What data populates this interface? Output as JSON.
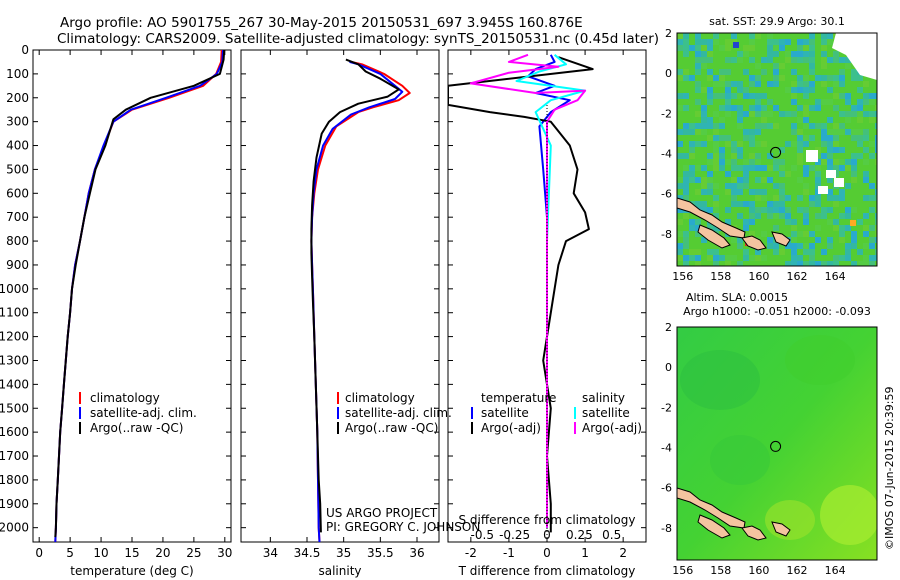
{
  "header": {
    "line1": "Argo profile: AO 5901755_267 30-May-2015 20150531_697 3.945S 160.876E",
    "line2": "Climatology: CARS2009. Satellite-adjusted climatology: synTS_20150531.nc (0.45d later)"
  },
  "credits": {
    "project": "US ARGO PROJECT",
    "pi": "PI: GREGORY C. JOHNSON",
    "imos": "©IMOS 07-Jun-2015 20:39:59"
  },
  "colors": {
    "climatology": "#ff0000",
    "satellite": "#0000ff",
    "argo": "#000000",
    "sat_temp_diff": "#0000ff",
    "sat_sal_diff": "#00ffff",
    "argo_sal_diff": "#ff00ff"
  },
  "chart_data": [
    {
      "type": "line",
      "panel": "temperature",
      "xlabel": "temperature (deg C)",
      "ylabel": "",
      "xlim": [
        -1,
        31
      ],
      "ylim": [
        2060,
        0
      ],
      "x_ticks": [
        0,
        5,
        10,
        15,
        20,
        25,
        30
      ],
      "x_tick_labels": [
        "0",
        "5",
        "10",
        "15",
        "20",
        "25",
        "30"
      ],
      "y_ticks": [
        0,
        100,
        200,
        300,
        400,
        500,
        600,
        700,
        800,
        900,
        1000,
        1100,
        1200,
        1300,
        1400,
        1500,
        1600,
        1700,
        1800,
        1900,
        2000
      ],
      "legend": [
        "climatology",
        "satellite-adj. clim.",
        "Argo(..raw -QC)"
      ],
      "series": [
        {
          "name": "climatology",
          "color": "#ff0000",
          "points": [
            [
              29.5,
              0
            ],
            [
              29.4,
              50
            ],
            [
              28.6,
              100
            ],
            [
              26.5,
              150
            ],
            [
              21,
              200
            ],
            [
              15,
              250
            ],
            [
              12,
              300
            ],
            [
              10.5,
              400
            ],
            [
              9,
              500
            ],
            [
              8,
              600
            ],
            [
              7.3,
              700
            ],
            [
              6.6,
              800
            ],
            [
              5.8,
              900
            ],
            [
              5.3,
              1000
            ],
            [
              5,
              1100
            ],
            [
              4.6,
              1200
            ],
            [
              4.3,
              1300
            ],
            [
              4,
              1400
            ],
            [
              3.7,
              1500
            ],
            [
              3.4,
              1600
            ],
            [
              3.2,
              1700
            ],
            [
              3,
              1800
            ],
            [
              2.8,
              1900
            ],
            [
              2.7,
              2000
            ],
            [
              2.6,
              2060
            ]
          ]
        },
        {
          "name": "satellite-adj. clim.",
          "color": "#0000ff",
          "points": [
            [
              29.7,
              0
            ],
            [
              29.6,
              50
            ],
            [
              28.7,
              100
            ],
            [
              26,
              150
            ],
            [
              20.5,
              200
            ],
            [
              14.8,
              250
            ],
            [
              12,
              300
            ],
            [
              10.4,
              400
            ],
            [
              9,
              500
            ],
            [
              8,
              600
            ],
            [
              7.3,
              700
            ],
            [
              6.6,
              800
            ],
            [
              5.8,
              900
            ],
            [
              5.3,
              1000
            ],
            [
              5,
              1100
            ],
            [
              4.6,
              1200
            ],
            [
              4.3,
              1300
            ],
            [
              4,
              1400
            ],
            [
              3.7,
              1500
            ],
            [
              3.4,
              1600
            ],
            [
              3.2,
              1700
            ],
            [
              3,
              1800
            ],
            [
              2.8,
              1900
            ],
            [
              2.7,
              2000
            ],
            [
              2.6,
              2060
            ]
          ]
        },
        {
          "name": "Argo(..raw -QC)",
          "color": "#000000",
          "points": [
            [
              29.9,
              0
            ],
            [
              29.8,
              40
            ],
            [
              29.2,
              100
            ],
            [
              25,
              150
            ],
            [
              18,
              200
            ],
            [
              14,
              250
            ],
            [
              12,
              290
            ],
            [
              10.7,
              400
            ],
            [
              9.1,
              500
            ],
            [
              8.2,
              600
            ],
            [
              7.3,
              700
            ],
            [
              6.6,
              800
            ],
            [
              5.9,
              900
            ],
            [
              5.3,
              1000
            ],
            [
              5,
              1100
            ],
            [
              4.6,
              1200
            ],
            [
              4.3,
              1300
            ],
            [
              4,
              1400
            ],
            [
              3.7,
              1500
            ],
            [
              3.4,
              1600
            ],
            [
              3.2,
              1700
            ],
            [
              3,
              1800
            ],
            [
              2.8,
              1900
            ],
            [
              2.7,
              2000
            ],
            [
              2.6,
              2040
            ]
          ]
        }
      ]
    },
    {
      "type": "line",
      "panel": "salinity",
      "xlabel": "salinity",
      "xlim": [
        33.6,
        36.3
      ],
      "ylim": [
        2060,
        0
      ],
      "x_ticks": [
        34,
        34.5,
        35,
        35.5,
        36
      ],
      "x_tick_labels": [
        "34",
        "34.5",
        "35",
        "35.5",
        "36"
      ],
      "legend": [
        "climatology",
        "satellite-adj. clim.",
        "Argo(..raw -QC)"
      ],
      "series": [
        {
          "name": "climatology",
          "color": "#ff0000",
          "points": [
            [
              35.1,
              50
            ],
            [
              35.25,
              60
            ],
            [
              35.4,
              80
            ],
            [
              35.55,
              100
            ],
            [
              35.8,
              150
            ],
            [
              35.9,
              180
            ],
            [
              35.75,
              210
            ],
            [
              35.4,
              240
            ],
            [
              35.2,
              260
            ],
            [
              34.9,
              320
            ],
            [
              34.75,
              400
            ],
            [
              34.65,
              500
            ],
            [
              34.6,
              600
            ],
            [
              34.57,
              700
            ],
            [
              34.56,
              800
            ],
            [
              34.57,
              900
            ],
            [
              34.58,
              1000
            ],
            [
              34.6,
              1200
            ],
            [
              34.62,
              1400
            ],
            [
              34.64,
              1600
            ],
            [
              34.65,
              1800
            ],
            [
              34.66,
              2000
            ],
            [
              34.67,
              2060
            ]
          ]
        },
        {
          "name": "satellite-adj. clim.",
          "color": "#0000ff",
          "points": [
            [
              35.08,
              50
            ],
            [
              35.2,
              60
            ],
            [
              35.35,
              80
            ],
            [
              35.5,
              100
            ],
            [
              35.7,
              150
            ],
            [
              35.8,
              175
            ],
            [
              35.7,
              205
            ],
            [
              35.35,
              240
            ],
            [
              35.1,
              270
            ],
            [
              34.85,
              330
            ],
            [
              34.72,
              400
            ],
            [
              34.63,
              500
            ],
            [
              34.59,
              600
            ],
            [
              34.57,
              700
            ],
            [
              34.56,
              800
            ],
            [
              34.57,
              900
            ],
            [
              34.58,
              1000
            ],
            [
              34.6,
              1200
            ],
            [
              34.62,
              1400
            ],
            [
              34.64,
              1600
            ],
            [
              34.65,
              1800
            ],
            [
              34.66,
              2000
            ],
            [
              34.67,
              2060
            ]
          ]
        },
        {
          "name": "Argo(..raw -QC)",
          "color": "#000000",
          "points": [
            [
              35.03,
              40
            ],
            [
              35.2,
              60
            ],
            [
              35.3,
              90
            ],
            [
              35.5,
              120
            ],
            [
              35.75,
              165
            ],
            [
              35.6,
              195
            ],
            [
              35.2,
              225
            ],
            [
              34.95,
              260
            ],
            [
              34.8,
              300
            ],
            [
              34.7,
              350
            ],
            [
              34.63,
              450
            ],
            [
              34.59,
              550
            ],
            [
              34.57,
              650
            ],
            [
              34.56,
              750
            ],
            [
              34.56,
              850
            ],
            [
              34.57,
              950
            ],
            [
              34.58,
              1050
            ],
            [
              34.6,
              1200
            ],
            [
              34.62,
              1400
            ],
            [
              34.64,
              1600
            ],
            [
              34.66,
              1800
            ],
            [
              34.68,
              1900
            ],
            [
              34.69,
              2020
            ]
          ]
        }
      ]
    },
    {
      "type": "line",
      "panel": "difference",
      "xlabel_top": "S difference from climatology",
      "xlabel_bottom": "T difference from climatology",
      "xlim": [
        -2.6,
        2.6
      ],
      "ylim": [
        2060,
        0
      ],
      "x_ticks": [
        -2,
        -1,
        0,
        1,
        2
      ],
      "x_tick_labels": [
        "-2",
        "-1",
        "0",
        "1",
        "2"
      ],
      "s_ticks": [
        -0.5,
        -0.25,
        0,
        0.25,
        0.5
      ],
      "s_tick_labels": [
        "-0.5",
        "-0.25",
        "0",
        "0.25",
        "0.5"
      ],
      "legend_groups": [
        {
          "title": "temperature",
          "entries": [
            "satellite",
            "Argo(-adj)"
          ]
        },
        {
          "title": "salinity",
          "entries": [
            "satellite",
            "Argo(-adj)"
          ]
        }
      ],
      "series": [
        {
          "name": "satellite T",
          "color": "#0000ff",
          "points": [
            [
              0.1,
              20
            ],
            [
              0.2,
              50
            ],
            [
              -0.3,
              80
            ],
            [
              -0.5,
              110
            ],
            [
              0.2,
              150
            ],
            [
              -0.3,
              180
            ],
            [
              0.6,
              210
            ],
            [
              0.1,
              260
            ],
            [
              -0.2,
              320
            ],
            [
              -0.1,
              500
            ],
            [
              0,
              700
            ],
            [
              0,
              1000
            ],
            [
              0,
              1500
            ],
            [
              0,
              2000
            ]
          ]
        },
        {
          "name": "Argo T",
          "color": "#000000",
          "points": [
            [
              0.3,
              30
            ],
            [
              1.2,
              80
            ],
            [
              -2.6,
              150
            ],
            [
              -2.6,
              230
            ],
            [
              -1.5,
              260
            ],
            [
              -0.6,
              280
            ],
            [
              0.1,
              300
            ],
            [
              0.6,
              400
            ],
            [
              0.8,
              500
            ],
            [
              0.7,
              600
            ],
            [
              1.0,
              680
            ],
            [
              1.1,
              750
            ],
            [
              0.5,
              800
            ],
            [
              0.3,
              900
            ],
            [
              0.2,
              1000
            ],
            [
              0.1,
              1100
            ],
            [
              -0.1,
              1300
            ],
            [
              0.1,
              1500
            ],
            [
              0,
              1700
            ],
            [
              0.1,
              1900
            ],
            [
              0.1,
              2020
            ]
          ]
        },
        {
          "name": "satellite S",
          "color": "#00ffff",
          "points": [
            [
              0.2,
              20
            ],
            [
              0.5,
              60
            ],
            [
              -0.2,
              90
            ],
            [
              -0.8,
              130
            ],
            [
              1.0,
              170
            ],
            [
              0.1,
              210
            ],
            [
              -0.3,
              260
            ],
            [
              0.1,
              400
            ],
            [
              0.05,
              600
            ],
            [
              0,
              800
            ],
            [
              0,
              1000
            ],
            [
              0,
              1500
            ],
            [
              0,
              2000
            ]
          ]
        },
        {
          "name": "Argo S",
          "color": "#ff00ff",
          "points": [
            [
              -0.5,
              20
            ],
            [
              -1.0,
              50
            ],
            [
              0.3,
              70
            ],
            [
              -1.0,
              95
            ],
            [
              -2.0,
              140
            ],
            [
              -0.3,
              180
            ],
            [
              1.0,
              170
            ],
            [
              0.8,
              210
            ],
            [
              0.2,
              250
            ],
            [
              0,
              300
            ],
            [
              0,
              500
            ],
            [
              0,
              1000
            ],
            [
              0,
              2000
            ]
          ]
        }
      ]
    },
    {
      "type": "heatmap",
      "panel": "sst-map",
      "title": "sat. SST: 29.9 Argo: 30.1",
      "xlim": [
        155.7,
        166.2
      ],
      "ylim": [
        -9.6,
        2.0
      ],
      "x_ticks": [
        156,
        158,
        160,
        162,
        164
      ],
      "x_tick_labels": [
        "156",
        "158",
        "160",
        "162",
        "164"
      ],
      "y_ticks": [
        2,
        0,
        -2,
        -4,
        -6,
        -8
      ],
      "y_tick_labels": [
        "2",
        "0",
        "-2",
        "-4",
        "-6",
        "-8"
      ],
      "float_position": [
        160.876,
        -3.945
      ],
      "base_color": "#55cc33"
    },
    {
      "type": "heatmap",
      "panel": "sla-map",
      "title": "Altim. SLA: 0.0015",
      "subtitle": "Argo h1000: -0.051 h2000: -0.093",
      "xlim": [
        155.7,
        166.2
      ],
      "ylim": [
        -9.6,
        2.0
      ],
      "x_ticks": [
        156,
        158,
        160,
        162,
        164
      ],
      "x_tick_labels": [
        "156",
        "158",
        "160",
        "162",
        "164"
      ],
      "y_ticks": [
        2,
        0,
        -2,
        -4,
        -6,
        -8
      ],
      "y_tick_labels": [
        "2",
        "0",
        "-2",
        "-4",
        "-6",
        "-8"
      ],
      "float_position": [
        160.876,
        -3.945
      ],
      "base_color": "#33cc33"
    }
  ]
}
